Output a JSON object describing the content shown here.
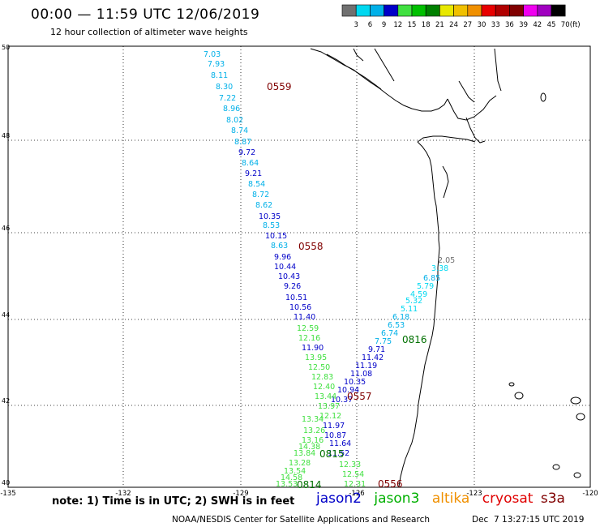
{
  "header": {
    "title": "00:00 — 11:59 UTC 12/06/2019",
    "subtitle": "12 hour collection of altimeter wave heights"
  },
  "scale": {
    "unit": "(ft)",
    "labels": [
      "3",
      "6",
      "9",
      "12",
      "15",
      "18",
      "21",
      "24",
      "27",
      "30",
      "33",
      "36",
      "39",
      "42",
      "45",
      "70"
    ],
    "colors": [
      "#707070",
      "#00d8f0",
      "#00b0e8",
      "#0000c8",
      "#40e040",
      "#00c000",
      "#008000",
      "#e8e800",
      "#f0c000",
      "#f09000",
      "#e80000",
      "#b00000",
      "#800000",
      "#f000f0",
      "#a000c0",
      "#000000"
    ]
  },
  "axes": {
    "lat_labels": [
      "50",
      "48",
      "46",
      "44",
      "42",
      "40"
    ],
    "lon_labels": [
      "-135",
      "-132",
      "-129",
      "-126",
      "-123",
      "-120"
    ]
  },
  "passes": [
    {
      "satellite": "jason2",
      "color": "#000090",
      "time": "0559",
      "time_color": "#800000",
      "values": [
        "7.03",
        "7.93",
        "8.11",
        "8.30",
        "7.22",
        "8.96",
        "8.02",
        "8.74",
        "8.87",
        "9.72",
        "8.64",
        "9.21",
        "8.54",
        "8.72",
        "8.62",
        "10.35",
        "8.53",
        "10.15",
        "8.63",
        "9.96",
        "10.44",
        "10.43",
        "9.26",
        "10.51",
        "10.56",
        "11.40"
      ]
    },
    {
      "satellite": "jason3",
      "time": "0558",
      "time_color": "#800000"
    },
    {
      "satellite": "jason3",
      "time": "0816",
      "time_color": "#007000",
      "values": [
        "2.05",
        "3.38",
        "6.85",
        "5.79",
        "4.59",
        "5.32",
        "5.11",
        "6.18",
        "6.53",
        "6.74",
        "7.75",
        "9.71",
        "11.42",
        "11.19",
        "11.08",
        "10.35",
        "10.94",
        "10.37"
      ]
    },
    {
      "satellite": "jason3",
      "time": "0557",
      "time_color": "#800000"
    },
    {
      "satellite": "jason3",
      "time": "0815",
      "time_color": "#007000",
      "values": [
        "12.59",
        "12.16",
        "11.90",
        "13.95",
        "12.50",
        "12.83",
        "12.40",
        "13.44",
        "13.97",
        "12.12",
        "11.97",
        "13.34",
        "10.87",
        "13.26",
        "11.64",
        "13.16",
        "11.52",
        "14.38",
        "13.84",
        "13.28",
        "12.33",
        "13.54",
        "12.54",
        "14.58",
        "12.31",
        "13.53"
      ]
    },
    {
      "satellite": "jason3",
      "time": "0814",
      "time_color": "#007000"
    },
    {
      "satellite": "jason3",
      "time": "0556",
      "time_color": "#800000"
    }
  ],
  "legend": {
    "note": "note: 1) Time is in UTC; 2) SWH is in feet",
    "jason2": "jason2",
    "jason3": "jason3",
    "altika": "altika",
    "cryosat": "cryosat",
    "s3a": "s3a"
  },
  "footer": {
    "credit": "NOAA/NESDIS Center for Satellite Applications and Research",
    "date": "Dec  7 13:27:15 UTC 2019"
  }
}
